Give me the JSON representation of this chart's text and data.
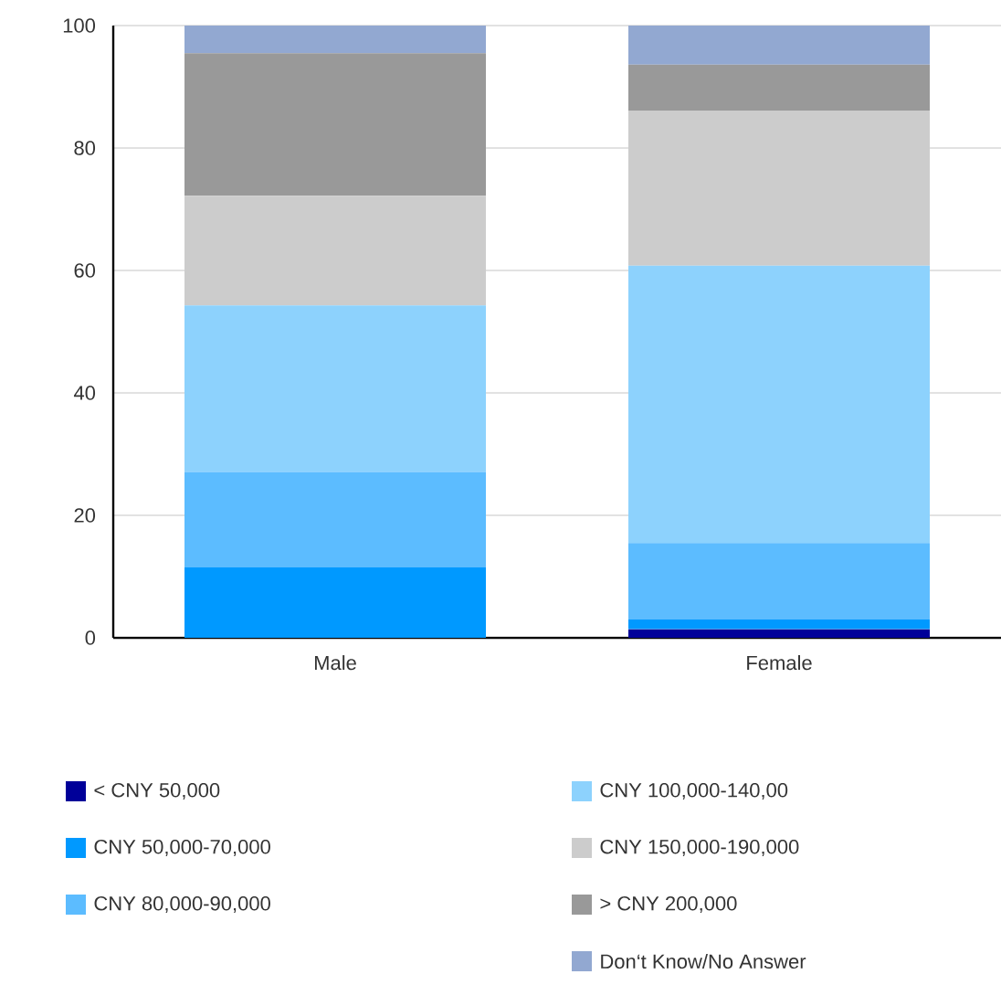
{
  "chart_data": {
    "type": "bar",
    "stacked": true,
    "categories": [
      "Male",
      "Female"
    ],
    "series": [
      {
        "name": "< CNY 50,000",
        "color": "#000099",
        "values": [
          0,
          1.4
        ]
      },
      {
        "name": "CNY 50,000-70,000",
        "color": "#0099ff",
        "values": [
          11.5,
          1.6
        ]
      },
      {
        "name": "CNY 80,000-90,000",
        "color": "#5cbcff",
        "values": [
          15.6,
          12.5
        ]
      },
      {
        "name": "CNY 100,000-140,00",
        "color": "#8dd2fd",
        "values": [
          27.2,
          45.3
        ]
      },
      {
        "name": "CNY 150,000-190,000",
        "color": "#cccccc",
        "values": [
          17.9,
          25.3
        ]
      },
      {
        "name": "> CNY 200,000",
        "color": "#999999",
        "values": [
          23.3,
          7.5
        ]
      },
      {
        "name": "Don‘t Know/No Answer",
        "color": "#92a8d1",
        "values": [
          4.5,
          6.4
        ]
      }
    ],
    "ylim": [
      0,
      100
    ],
    "yticks": [
      0,
      20,
      40,
      60,
      80,
      100
    ],
    "grid": "y",
    "legend": "bottom"
  }
}
